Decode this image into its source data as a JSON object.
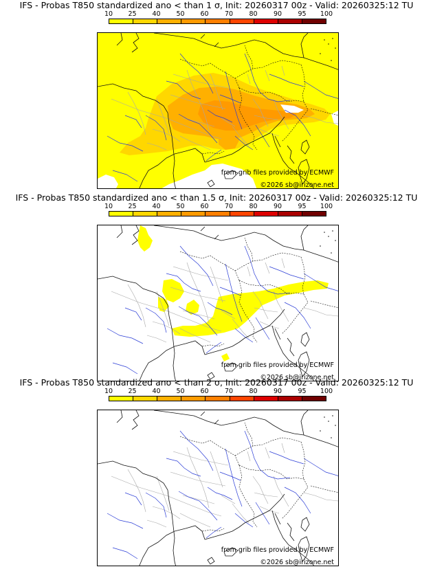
{
  "legend": {
    "labels": [
      "10",
      "25",
      "40",
      "50",
      "60",
      "70",
      "80",
      "90",
      "95",
      "100"
    ],
    "colors": [
      "#ffff00",
      "#ffd700",
      "#ffb000",
      "#ff9a00",
      "#ff7f00",
      "#ff4500",
      "#dd0000",
      "#aa0000",
      "#700000"
    ]
  },
  "panels": [
    {
      "title": "IFS - Probas T850  standardized ano < than 1 σ, Init: 20260317 00z - Valid: 20260325:12 TU",
      "source_credit": "from grib files provided by ECMWF",
      "copyright": "©2026 sb@irizone.net",
      "coverage": "high"
    },
    {
      "title": "IFS - Probas T850  standardized ano < than 1.5 σ, Init: 20260317 00z - Valid: 20260325:12 TU",
      "source_credit": "from grib files provided by ECMWF",
      "copyright": "©2026 sb@irizone.net",
      "coverage": "low"
    },
    {
      "title": "IFS - Probas T850  standardized ano < than 2 σ, Init: 20260317 00z - Valid: 20260325:12 TU",
      "source_credit": "from grib files provided by ECMWF",
      "copyright": "©2026 sb@irizone.net",
      "coverage": "none"
    }
  ]
}
